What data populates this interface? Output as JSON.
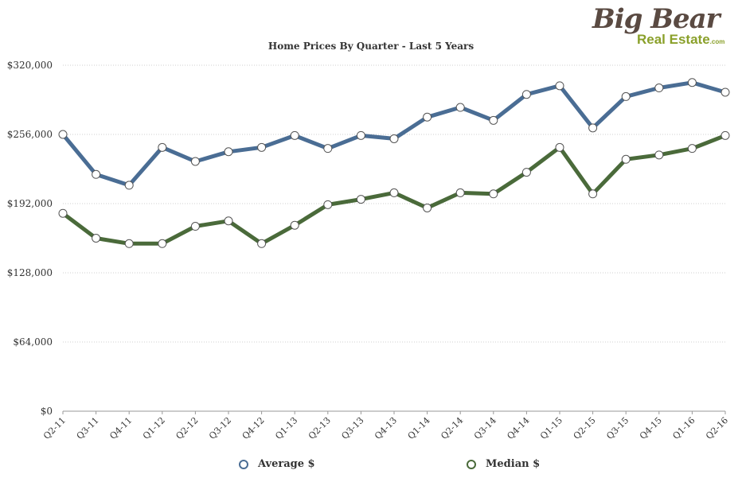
{
  "logo": {
    "big": "Big Bear",
    "sub": "Real Estate",
    "suffix": ".com"
  },
  "chart_data": {
    "type": "line",
    "title": "Home Prices By Quarter - Last 5 Years",
    "categories": [
      "Q2-11",
      "Q3-11",
      "Q4-11",
      "Q1-12",
      "Q2-12",
      "Q3-12",
      "Q4-12",
      "Q1-13",
      "Q2-13",
      "Q3-13",
      "Q4-13",
      "Q1-14",
      "Q2-14",
      "Q3-14",
      "Q4-14",
      "Q1-15",
      "Q2-15",
      "Q3-15",
      "Q4-15",
      "Q1-16",
      "Q2-16"
    ],
    "yticks": [
      "$0",
      "$64,000",
      "$128,000",
      "$192,000",
      "$256,000",
      "$320,000"
    ],
    "ylim": [
      0,
      320000
    ],
    "grid": true,
    "legend": "bottom",
    "series": [
      {
        "name": "Average $",
        "color": "#4a6d94",
        "values": [
          256000,
          219000,
          209000,
          244000,
          231000,
          240000,
          244000,
          255000,
          243000,
          255000,
          252000,
          272000,
          281000,
          269000,
          293000,
          301000,
          262000,
          291000,
          299000,
          304000,
          295000
        ]
      },
      {
        "name": "Median $",
        "color": "#4a6a3a",
        "values": [
          183000,
          160000,
          155000,
          155000,
          171000,
          176000,
          155000,
          172000,
          191000,
          196000,
          202000,
          188000,
          202000,
          201000,
          221000,
          244000,
          201000,
          233000,
          237000,
          243000,
          255000
        ]
      }
    ]
  }
}
